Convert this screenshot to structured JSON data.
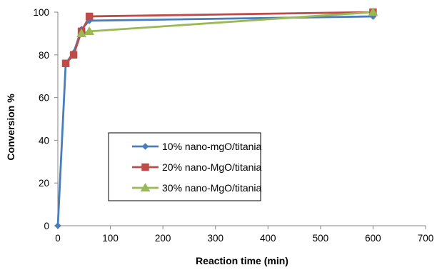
{
  "chart_data": {
    "type": "line",
    "xlabel": "Reaction time (min)",
    "ylabel": "Conversion %",
    "xlim": [
      0,
      700
    ],
    "ylim": [
      0,
      100
    ],
    "xticks": [
      0,
      100,
      200,
      300,
      400,
      500,
      600,
      700
    ],
    "yticks": [
      0,
      20,
      40,
      60,
      80,
      100
    ],
    "grid": "none",
    "legend_position": "center",
    "series": [
      {
        "name": "10% nano-mgO/titania",
        "color": "#4a7ebb",
        "marker": "diamond",
        "x": [
          0,
          15,
          30,
          45,
          60,
          600
        ],
        "y": [
          0,
          76,
          81,
          92,
          96,
          98
        ]
      },
      {
        "name": "20% nano-MgO/titania",
        "color": "#be4b48",
        "marker": "square",
        "x": [
          15,
          30,
          45,
          60,
          600
        ],
        "y": [
          76,
          80,
          91,
          98,
          100
        ]
      },
      {
        "name": "30% nano-MgO/titania",
        "color": "#98b954",
        "marker": "triangle",
        "x": [
          45,
          60,
          600
        ],
        "y": [
          90,
          91,
          100
        ]
      }
    ]
  }
}
